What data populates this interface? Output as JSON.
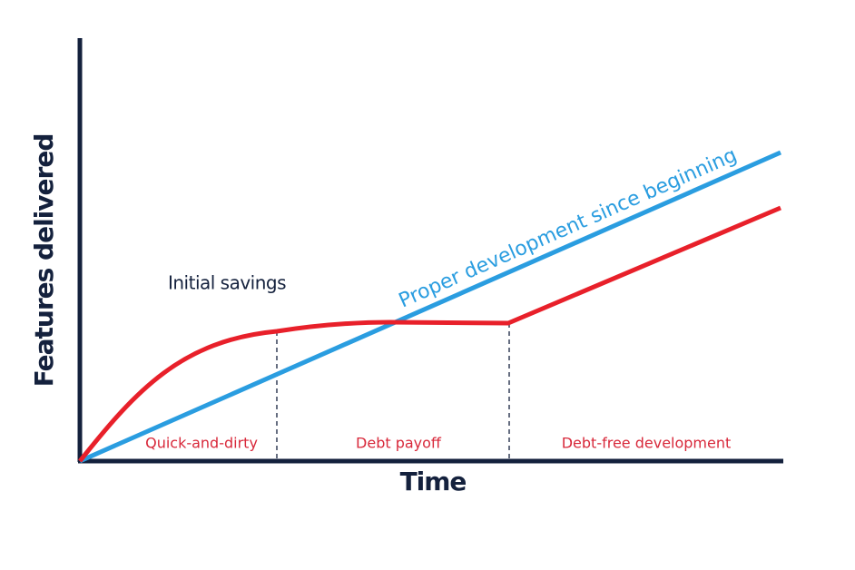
{
  "axes": {
    "y_label": "Features delivered",
    "x_label": "Time"
  },
  "annotations": {
    "initial_savings": "Initial savings",
    "proper_development": "Proper development since beginning"
  },
  "phases": [
    "Quick-and-dirty",
    "Debt payoff",
    "Debt-free development"
  ]
}
